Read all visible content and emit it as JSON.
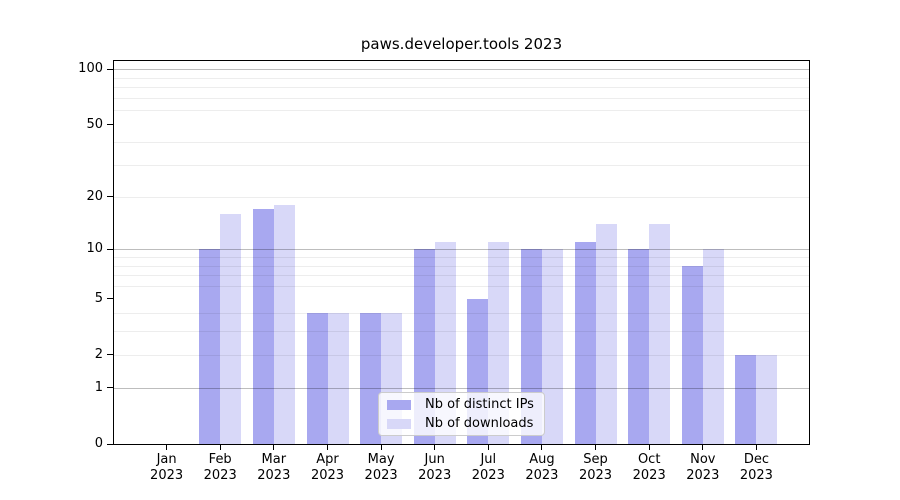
{
  "chart_data": {
    "type": "bar",
    "title": "paws.developer.tools 2023",
    "x": {
      "months": [
        "Jan",
        "Feb",
        "Mar",
        "Apr",
        "May",
        "Jun",
        "Jul",
        "Aug",
        "Sep",
        "Oct",
        "Nov",
        "Dec"
      ],
      "year": "2023"
    },
    "y_axis": {
      "scale": "log10(1+value)",
      "tick_labels": [
        100,
        50,
        20,
        10,
        5,
        2,
        1,
        0
      ],
      "major_gridlines": [
        1,
        10,
        100
      ],
      "minor_gridlines": [
        2,
        3,
        4,
        6,
        7,
        8,
        9,
        20,
        30,
        40,
        60,
        70,
        80,
        90
      ],
      "ylim": [
        0,
        112
      ],
      "grid": true
    },
    "series": [
      {
        "name": "Nb of distinct IPs",
        "color": "#a8a8f0",
        "values": [
          0,
          10,
          17,
          4,
          4,
          10,
          5,
          10,
          11,
          10,
          8,
          2
        ]
      },
      {
        "name": "Nb of downloads",
        "color": "#d8d8f8",
        "values": [
          0,
          16,
          18,
          4,
          4,
          11,
          11,
          10,
          14,
          14,
          10,
          2
        ]
      }
    ],
    "legend": {
      "position": "inside bottom-center",
      "border_color": "#cccccc",
      "background": "rgba(255,255,255,0.8)"
    }
  }
}
